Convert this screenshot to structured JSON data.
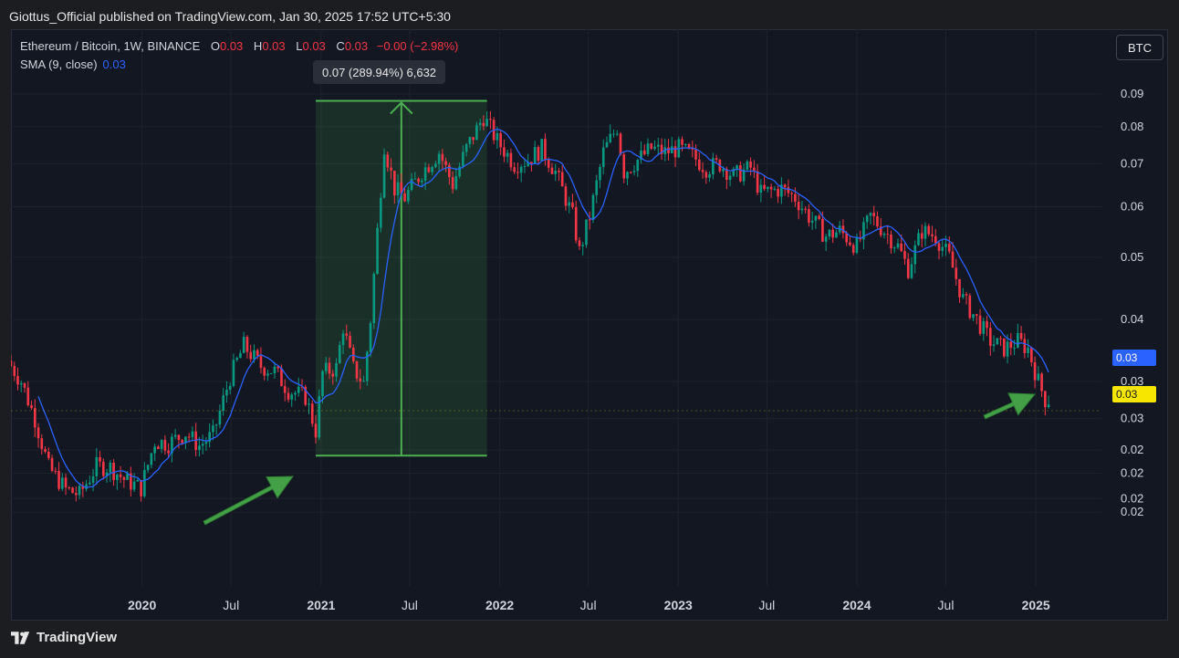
{
  "header": {
    "publish_text": "Giottus_Official published on TradingView.com, Jan 30, 2025 17:52 UTC+5:30"
  },
  "legend": {
    "symbol": "Ethereum / Bitcoin, 1W, BINANCE",
    "o_label": "O",
    "o_value": "0.03",
    "h_label": "H",
    "h_value": "0.03",
    "l_label": "L",
    "l_value": "0.03",
    "c_label": "C",
    "c_value": "0.03",
    "change": "−0.00 (−2.98%)",
    "sma_label": "SMA (9, close)",
    "sma_value": "0.03"
  },
  "currency_button": "BTC",
  "measure_label": "0.07 (289.94%) 6,632",
  "price_tags": {
    "sma": "0.03",
    "last": "0.03"
  },
  "footer": {
    "brand": "TradingView"
  },
  "colors": {
    "up": "#089981",
    "down": "#f23645",
    "sma": "#2962ff",
    "measure": "#4caf50",
    "arrow": "#43a047",
    "last": "#f7e600"
  },
  "chart_data": {
    "type": "candlestick",
    "title": "Ethereum / Bitcoin, 1W, BINANCE",
    "y_scale": "log",
    "y_tick_labels": [
      "0.09",
      "0.08",
      "0.07",
      "0.06",
      "0.05",
      "0.04",
      "0.03",
      "0.03",
      "0.02",
      "0.02",
      "0.02",
      "0.02"
    ],
    "y_tick_values": [
      0.09,
      0.08,
      0.07,
      0.06,
      0.05,
      0.04,
      0.032,
      0.028,
      0.025,
      0.023,
      0.021,
      0.02
    ],
    "x_tick_labels": [
      "2020",
      "Jul",
      "2021",
      "Jul",
      "2022",
      "Jul",
      "2023",
      "Jul",
      "2024",
      "Jul",
      "2025"
    ],
    "x_tick_dates": [
      "2020-01-01",
      "2020-07-01",
      "2021-01-01",
      "2021-07-01",
      "2022-01-01",
      "2022-07-01",
      "2023-01-01",
      "2023-07-01",
      "2024-01-01",
      "2024-07-01",
      "2025-01-01"
    ],
    "x_range": [
      "2019-04-08",
      "2025-05-15"
    ],
    "price_path": [
      [
        "2019-04-08",
        0.0345
      ],
      [
        "2019-05-06",
        0.032
      ],
      [
        "2019-06-03",
        0.028
      ],
      [
        "2019-07-01",
        0.0235
      ],
      [
        "2019-08-05",
        0.0217
      ],
      [
        "2019-09-02",
        0.0213
      ],
      [
        "2019-10-07",
        0.0236
      ],
      [
        "2019-11-04",
        0.0235
      ],
      [
        "2019-12-02",
        0.0225
      ],
      [
        "2020-01-06",
        0.0218
      ],
      [
        "2020-02-03",
        0.0258
      ],
      [
        "2020-03-02",
        0.0256
      ],
      [
        "2020-04-06",
        0.0266
      ],
      [
        "2020-05-04",
        0.0254
      ],
      [
        "2020-06-01",
        0.0264
      ],
      [
        "2020-07-06",
        0.0325
      ],
      [
        "2020-08-03",
        0.0364
      ],
      [
        "2020-09-07",
        0.0338
      ],
      [
        "2020-10-05",
        0.0332
      ],
      [
        "2020-11-02",
        0.031
      ],
      [
        "2020-12-07",
        0.0303
      ],
      [
        "2020-12-28",
        0.0268
      ],
      [
        "2021-01-11",
        0.033
      ],
      [
        "2021-02-08",
        0.0336
      ],
      [
        "2021-02-22",
        0.039
      ],
      [
        "2021-03-15",
        0.0335
      ],
      [
        "2021-04-05",
        0.0318
      ],
      [
        "2021-04-19",
        0.04
      ],
      [
        "2021-05-03",
        0.055
      ],
      [
        "2021-05-17",
        0.075
      ],
      [
        "2021-06-07",
        0.064
      ],
      [
        "2021-06-28",
        0.062
      ],
      [
        "2021-08-02",
        0.068
      ],
      [
        "2021-09-06",
        0.073
      ],
      [
        "2021-10-04",
        0.065
      ],
      [
        "2021-11-01",
        0.074
      ],
      [
        "2021-12-06",
        0.083
      ],
      [
        "2022-01-03",
        0.076
      ],
      [
        "2022-02-07",
        0.07
      ],
      [
        "2022-03-07",
        0.071
      ],
      [
        "2022-04-04",
        0.074
      ],
      [
        "2022-05-02",
        0.068
      ],
      [
        "2022-06-06",
        0.058
      ],
      [
        "2022-06-20",
        0.051
      ],
      [
        "2022-07-11",
        0.058
      ],
      [
        "2022-08-08",
        0.073
      ],
      [
        "2022-09-05",
        0.08
      ],
      [
        "2022-09-19",
        0.068
      ],
      [
        "2022-10-17",
        0.071
      ],
      [
        "2022-11-14",
        0.074
      ],
      [
        "2022-12-12",
        0.073
      ],
      [
        "2023-01-09",
        0.074
      ],
      [
        "2023-02-06",
        0.072
      ],
      [
        "2023-03-06",
        0.069
      ],
      [
        "2023-04-03",
        0.07
      ],
      [
        "2023-05-01",
        0.067
      ],
      [
        "2023-06-05",
        0.069
      ],
      [
        "2023-06-26",
        0.063
      ],
      [
        "2023-08-07",
        0.064
      ],
      [
        "2023-09-04",
        0.062
      ],
      [
        "2023-10-02",
        0.058
      ],
      [
        "2023-11-06",
        0.054
      ],
      [
        "2023-12-04",
        0.055
      ],
      [
        "2024-01-08",
        0.052
      ],
      [
        "2024-02-05",
        0.058
      ],
      [
        "2024-03-04",
        0.055
      ],
      [
        "2024-04-01",
        0.052
      ],
      [
        "2024-04-22",
        0.048
      ],
      [
        "2024-05-20",
        0.055
      ],
      [
        "2024-06-17",
        0.054
      ],
      [
        "2024-07-15",
        0.05
      ],
      [
        "2024-08-12",
        0.043
      ],
      [
        "2024-09-09",
        0.04
      ],
      [
        "2024-10-07",
        0.037
      ],
      [
        "2024-11-04",
        0.036
      ],
      [
        "2024-12-02",
        0.037
      ],
      [
        "2024-12-23",
        0.036
      ],
      [
        "2025-01-13",
        0.032
      ],
      [
        "2025-01-27",
        0.03
      ]
    ],
    "sma": {
      "name": "SMA (9, close)",
      "period": 9
    },
    "measurement": {
      "start_date": "2020-12-21",
      "end_date": "2021-12-06",
      "low": 0.0245,
      "high": 0.0878,
      "label": "0.07 (289.94%) 6,632"
    },
    "last_price": 0.03,
    "sma_last": 0.03
  }
}
